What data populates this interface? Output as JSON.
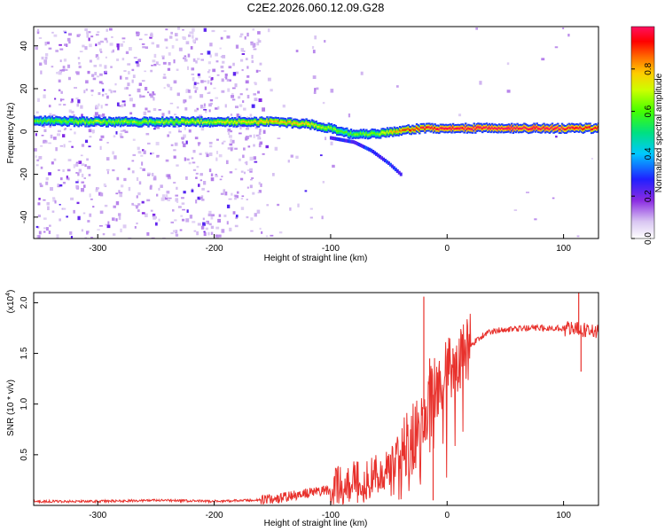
{
  "title": "C2E2.2026.060.12.09.G28",
  "chart_data": [
    {
      "type": "heatmap",
      "title": "C2E2.2026.060.12.09.G28",
      "xlabel": "Height of straight line (km)",
      "ylabel": "Frequency (Hz)",
      "xlim": [
        -355,
        130
      ],
      "ylim": [
        -50,
        49
      ],
      "xticks": [
        -300,
        -200,
        -100,
        0,
        100
      ],
      "xtick_labels": [
        "-300",
        "-200",
        "-100",
        "0",
        "100"
      ],
      "yticks": [
        -40,
        -20,
        0,
        20,
        40
      ],
      "ytick_labels": [
        "-40",
        "-20",
        "0",
        "20",
        "40"
      ],
      "grid": false,
      "ridge": {
        "description": "main spectral ridge (frequency vs height)",
        "x": [
          -355,
          -300,
          -250,
          -200,
          -150,
          -120,
          -100,
          -80,
          -60,
          -40,
          -20,
          0,
          20,
          50,
          100,
          130
        ],
        "freq": [
          5,
          4.5,
          4.5,
          4.5,
          4.5,
          3.5,
          1.5,
          -1.5,
          -1,
          0.5,
          1.5,
          1.5,
          1.5,
          1.5,
          1.5,
          1.5
        ],
        "amplitude": [
          0.55,
          0.6,
          0.6,
          0.65,
          0.75,
          0.7,
          0.6,
          0.55,
          0.6,
          0.8,
          0.9,
          0.95,
          0.95,
          0.98,
          0.95,
          0.9
        ]
      },
      "branch": {
        "description": "secondary descending branch",
        "x": [
          -100,
          -80,
          -65,
          -50,
          -40
        ],
        "freq": [
          -3,
          -5,
          -9,
          -15,
          -20
        ]
      },
      "colorbar": {
        "label": "Normalized spectral amplitude",
        "ticks": [
          0.0,
          0.2,
          0.4,
          0.6,
          0.8
        ],
        "tick_labels": [
          "0.0",
          "0.2",
          "0.4",
          "0.6",
          "0.8"
        ],
        "range": [
          0,
          1
        ],
        "colors": [
          "#ffffff",
          "#d9c6f2",
          "#8a2be2",
          "#2020ff",
          "#00c8ff",
          "#00e080",
          "#44ff00",
          "#ccff00",
          "#ffcc00",
          "#ff6600",
          "#ff0000",
          "#ff1060"
        ]
      }
    },
    {
      "type": "line",
      "xlabel": "Height of straight line (km)",
      "ylabel": "SNR (10 * v/v)",
      "multiplier_label": "(x10",
      "multiplier_exp": "4",
      "multiplier_close": ")",
      "xlim": [
        -355,
        130
      ],
      "ylim": [
        0,
        2.1
      ],
      "xticks": [
        -300,
        -200,
        -100,
        0,
        100
      ],
      "xtick_labels": [
        "-300",
        "-200",
        "-100",
        "0",
        "100"
      ],
      "yticks": [
        0.5,
        1.0,
        1.5,
        2.0
      ],
      "ytick_labels": [
        "0.5",
        "1.0",
        "1.5",
        "2.0"
      ],
      "grid": false,
      "color": "#e8312c",
      "series": [
        {
          "name": "SNR",
          "x": [
            -355,
            -300,
            -250,
            -200,
            -170,
            -150,
            -130,
            -110,
            -100,
            -90,
            -80,
            -70,
            -60,
            -50,
            -40,
            -30,
            -25,
            -20,
            -15,
            -10,
            -5,
            0,
            5,
            10,
            15,
            20,
            25,
            30,
            35,
            40,
            50,
            60,
            70,
            80,
            90,
            100,
            105,
            110,
            115,
            120,
            130
          ],
          "y": [
            0.04,
            0.04,
            0.05,
            0.04,
            0.05,
            0.06,
            0.1,
            0.14,
            0.15,
            0.18,
            0.22,
            0.27,
            0.33,
            0.4,
            0.5,
            0.65,
            0.78,
            0.95,
            1.05,
            1.12,
            1.2,
            1.3,
            1.38,
            1.45,
            1.52,
            1.58,
            1.63,
            1.67,
            1.7,
            1.72,
            1.74,
            1.74,
            1.75,
            1.75,
            1.75,
            1.75,
            1.74,
            1.74,
            1.73,
            1.73,
            1.72
          ]
        }
      ],
      "spikes": [
        {
          "x": -20,
          "y": 2.06
        },
        {
          "x": -15,
          "y": 1.45
        },
        {
          "x": -12,
          "y": 0.05
        },
        {
          "x": 5,
          "y": 1.55
        },
        {
          "x": 113,
          "y": 2.12
        },
        {
          "x": 115,
          "y": 1.32
        }
      ]
    }
  ]
}
